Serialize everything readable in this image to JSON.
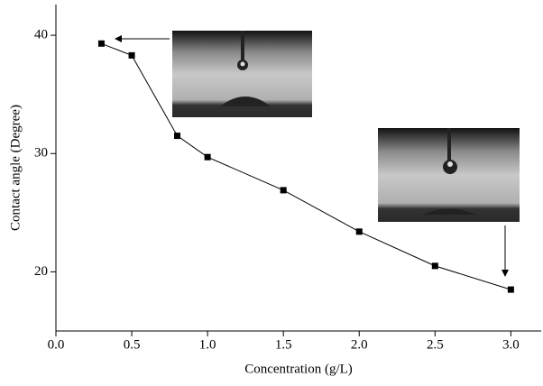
{
  "chart_data": {
    "type": "line",
    "xlabel": "Concentration (g/L)",
    "ylabel": "Contact angle (Degree)",
    "x": [
      0.3,
      0.5,
      0.8,
      1.0,
      1.5,
      2.0,
      2.5,
      3.0
    ],
    "series": [
      {
        "color": "#000000",
        "values": [
          39.3,
          38.3,
          31.5,
          29.7,
          26.9,
          23.4,
          20.5,
          18.5
        ]
      }
    ],
    "xlim": [
      0,
      3.2
    ],
    "ylim": [
      15,
      42.6
    ],
    "xticks": [
      {
        "value": 0,
        "label": "0.0"
      },
      {
        "value": 0.5,
        "label": "0.5"
      },
      {
        "value": 1,
        "label": "1.0"
      },
      {
        "value": 1.5,
        "label": "1.5"
      },
      {
        "value": 2,
        "label": "2.0"
      },
      {
        "value": 2.5,
        "label": "2.5"
      },
      {
        "value": 3,
        "label": "3.0"
      }
    ],
    "yticks": [
      20,
      30,
      40
    ]
  }
}
